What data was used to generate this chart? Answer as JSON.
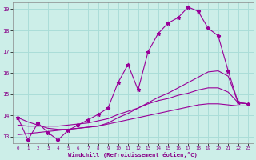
{
  "xlabel": "Windchill (Refroidissement éolien,°C)",
  "background_color": "#cceee8",
  "grid_color": "#aaddd8",
  "line_color": "#990099",
  "xlim": [
    -0.5,
    23.5
  ],
  "ylim": [
    12.7,
    19.3
  ],
  "yticks": [
    13,
    14,
    15,
    16,
    17,
    18,
    19
  ],
  "xticks": [
    0,
    1,
    2,
    3,
    4,
    5,
    6,
    7,
    8,
    9,
    10,
    11,
    12,
    13,
    14,
    15,
    16,
    17,
    18,
    19,
    20,
    21,
    22,
    23
  ],
  "hours": [
    0,
    1,
    2,
    3,
    4,
    5,
    6,
    7,
    8,
    9,
    10,
    11,
    12,
    13,
    14,
    15,
    16,
    17,
    18,
    19,
    20,
    21,
    22,
    23
  ],
  "temp_curve": [
    13.9,
    12.85,
    13.65,
    13.2,
    12.85,
    13.3,
    13.55,
    13.8,
    14.05,
    14.35,
    15.55,
    16.4,
    15.2,
    17.0,
    17.85,
    18.35,
    18.6,
    19.1,
    18.9,
    18.1,
    17.75,
    16.1,
    14.6,
    14.55
  ],
  "trend1": [
    13.9,
    13.7,
    13.55,
    13.4,
    13.35,
    13.35,
    13.4,
    13.45,
    13.5,
    13.65,
    13.9,
    14.1,
    14.35,
    14.6,
    14.85,
    15.05,
    15.3,
    15.55,
    15.8,
    16.05,
    16.1,
    15.85,
    14.6,
    14.55
  ],
  "trend2": [
    13.55,
    13.5,
    13.5,
    13.5,
    13.5,
    13.55,
    13.6,
    13.65,
    13.75,
    13.85,
    14.05,
    14.2,
    14.35,
    14.55,
    14.7,
    14.8,
    14.95,
    15.05,
    15.2,
    15.3,
    15.3,
    15.1,
    14.6,
    14.55
  ],
  "trend3": [
    13.1,
    13.15,
    13.2,
    13.25,
    13.3,
    13.35,
    13.4,
    13.45,
    13.5,
    13.6,
    13.7,
    13.8,
    13.9,
    14.0,
    14.1,
    14.2,
    14.3,
    14.4,
    14.5,
    14.55,
    14.55,
    14.5,
    14.45,
    14.45
  ]
}
